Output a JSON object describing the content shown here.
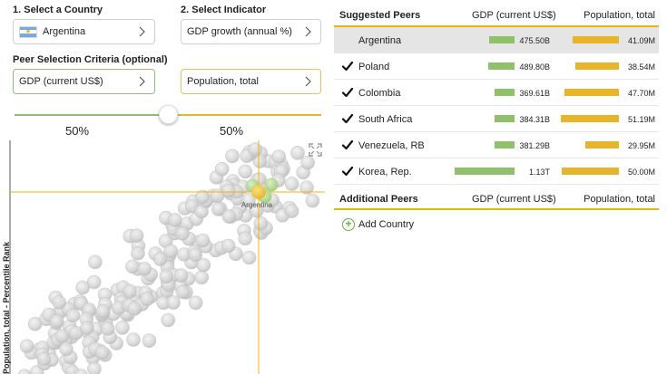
{
  "country": {
    "step_label": "1. Select a Country",
    "value": "Argentina"
  },
  "indicator": {
    "step_label": "2. Select Indicator",
    "value": "GDP growth (annual %)"
  },
  "peer_criteria": {
    "label": "Peer Selection Criteria (optional)",
    "criterion1": "GDP (current US$)",
    "criterion2": "Population, total",
    "weight1": "50%",
    "weight2": "50%",
    "slider_fraction": 0.5
  },
  "chart": {
    "y_axis_label": "Population, total - Percentile Rank",
    "highlight_label": "Argentina"
  },
  "colors": {
    "green": "#8fc16b",
    "yellow": "#e8b52a",
    "highlight_line": "#f0b400"
  },
  "suggested": {
    "header": "Suggested Peers",
    "col_gdp": "GDP (current US$)",
    "col_pop": "Population, total",
    "rows": [
      {
        "name": "Argentina",
        "gdp": "475.50B",
        "gdp_value": 475.5,
        "pop": "41.09M",
        "pop_value": 41.09,
        "checked": false
      },
      {
        "name": "Poland",
        "gdp": "489.80B",
        "gdp_value": 489.8,
        "pop": "38.54M",
        "pop_value": 38.54,
        "checked": true
      },
      {
        "name": "Colombia",
        "gdp": "369.61B",
        "gdp_value": 369.61,
        "pop": "47.70M",
        "pop_value": 47.7,
        "checked": true
      },
      {
        "name": "South Africa",
        "gdp": "384.31B",
        "gdp_value": 384.31,
        "pop": "51.19M",
        "pop_value": 51.19,
        "checked": true
      },
      {
        "name": "Venezuela, RB",
        "gdp": "381.29B",
        "gdp_value": 381.29,
        "pop": "29.95M",
        "pop_value": 29.95,
        "checked": true
      },
      {
        "name": "Korea, Rep.",
        "gdp": "1.13T",
        "gdp_value": 1130,
        "pop": "50.00M",
        "pop_value": 50.0,
        "checked": true
      }
    ]
  },
  "additional": {
    "header": "Additional Peers",
    "col_gdp": "GDP (current US$)",
    "col_pop": "Population, total",
    "add_label": "Add Country"
  }
}
